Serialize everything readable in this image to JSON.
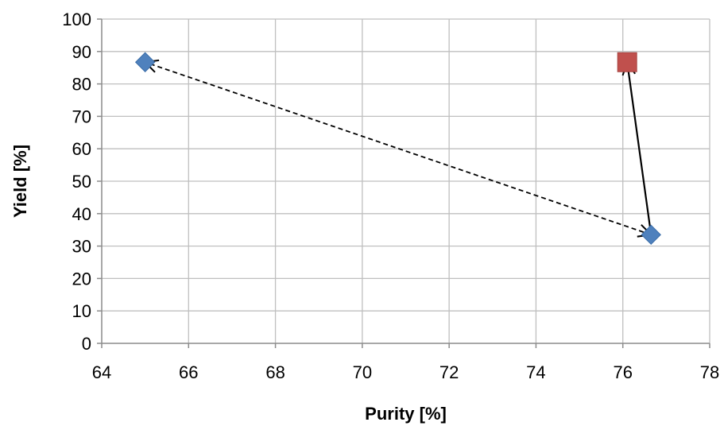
{
  "chart_data": {
    "type": "scatter",
    "xlabel": "Purity [%]",
    "ylabel": "Yield [%]",
    "xlim": [
      64,
      78
    ],
    "ylim": [
      0,
      100
    ],
    "x_ticks": [
      "64",
      "66",
      "68",
      "70",
      "72",
      "74",
      "76",
      "78"
    ],
    "y_ticks": [
      "0",
      "10",
      "20",
      "30",
      "40",
      "50",
      "60",
      "70",
      "80",
      "90",
      "100"
    ],
    "grid": true,
    "legend": "none",
    "series": [
      {
        "marker": "diamond",
        "color": "#4f81bd",
        "points": [
          {
            "x": 65.0,
            "y": 86.7
          },
          {
            "x": 76.65,
            "y": 33.5
          }
        ]
      },
      {
        "marker": "square",
        "color": "#c0504d",
        "points": [
          {
            "x": 76.1,
            "y": 86.7
          }
        ]
      }
    ],
    "annotations": [
      {
        "type": "double-arrow",
        "style": "dashed",
        "color": "#000000",
        "from": {
          "x": 76.65,
          "y": 33.5
        },
        "to": {
          "x": 65.0,
          "y": 86.7
        }
      },
      {
        "type": "arrow",
        "style": "solid",
        "color": "#000000",
        "from": {
          "x": 76.65,
          "y": 33.5
        },
        "to": {
          "x": 76.1,
          "y": 86.7
        }
      }
    ]
  }
}
